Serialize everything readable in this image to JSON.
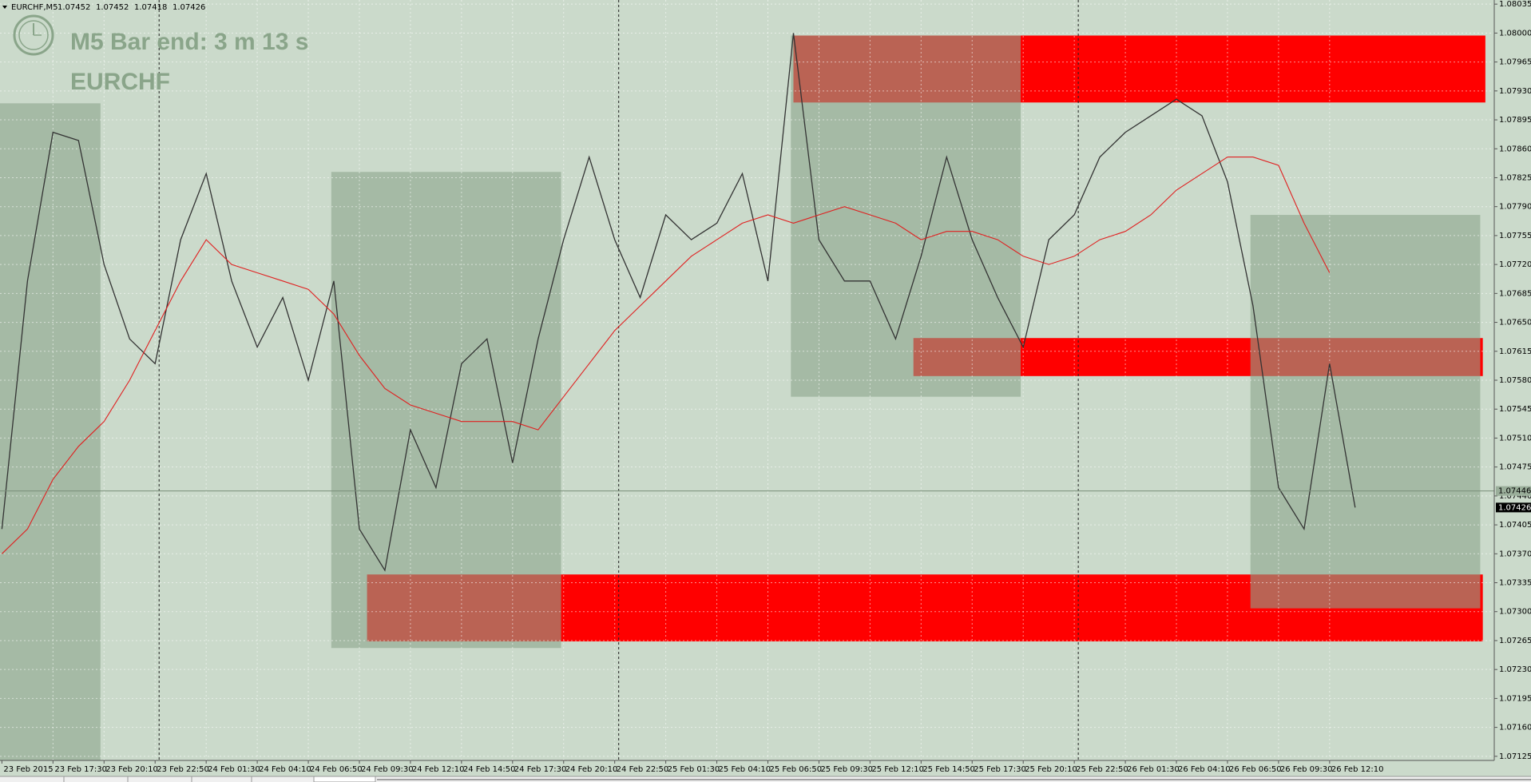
{
  "header": {
    "symbol": "EURCHF,M5",
    "ohlc": [
      1.07452,
      1.07452,
      1.07418,
      1.07426
    ]
  },
  "overlay": {
    "timer": "M5 Bar end: 3 m 13 s"
  },
  "chart_data": {
    "type": "line",
    "categories": [
      "23 Feb 2015",
      null,
      "23 Feb 17:30",
      null,
      "23 Feb 20:10",
      null,
      "23 Feb 22:50",
      null,
      "24 Feb 01:30",
      null,
      "24 Feb 04:10",
      null,
      "24 Feb 06:50",
      null,
      "24 Feb 09:30",
      null,
      "24 Feb 12:10",
      null,
      "24 Feb 14:50",
      null,
      "24 Feb 17:30",
      null,
      "24 Feb 20:10",
      null,
      "24 Feb 22:50",
      null,
      "25 Feb 01:30",
      null,
      "25 Feb 04:10",
      null,
      "25 Feb 06:50",
      null,
      "25 Feb 09:30",
      null,
      "25 Feb 12:10",
      null,
      "25 Feb 14:50",
      null,
      "25 Feb 17:30",
      null,
      "25 Feb 20:10",
      null,
      "25 Feb 22:50",
      null,
      "26 Feb 01:30",
      null,
      "26 Feb 04:10",
      null,
      "26 Feb 06:50",
      null,
      "26 Feb 09:30",
      null,
      "26 Feb 12:10",
      null
    ],
    "series": [
      {
        "name": "EURCHF",
        "color": "#333333",
        "values": [
          1.074,
          1.077,
          1.0788,
          1.0787,
          1.0772,
          1.0763,
          1.076,
          1.0775,
          1.0783,
          1.077,
          1.0762,
          1.0768,
          1.0758,
          1.077,
          1.074,
          1.0735,
          1.0752,
          1.0745,
          1.076,
          1.0763,
          1.0748,
          1.0763,
          1.0775,
          1.0785,
          1.0775,
          1.0768,
          1.0778,
          1.0775,
          1.0777,
          1.0783,
          1.077,
          1.08,
          1.0775,
          1.077,
          1.077,
          1.0763,
          1.0773,
          1.0785,
          1.0775,
          1.0768,
          1.0762,
          1.0775,
          1.0778,
          1.0785,
          1.0788,
          1.079,
          1.0792,
          1.079,
          1.0782,
          1.0767,
          1.0745,
          1.074,
          1.076,
          1.07426
        ]
      },
      {
        "color": "#e02020",
        "values": [
          1.0737,
          1.074,
          1.0746,
          1.075,
          1.0753,
          1.0758,
          1.0764,
          1.077,
          1.0775,
          1.0772,
          1.0771,
          1.077,
          1.0769,
          1.0766,
          1.0761,
          1.0757,
          1.0755,
          1.0754,
          1.0753,
          1.0753,
          1.0753,
          1.0752,
          1.0756,
          1.076,
          1.0764,
          1.0767,
          1.077,
          1.0773,
          1.0775,
          1.0777,
          1.0778,
          1.0777,
          1.0778,
          1.0779,
          1.0778,
          1.0777,
          1.0775,
          1.0776,
          1.0776,
          1.0775,
          1.0773,
          1.0772,
          1.0773,
          1.0775,
          1.0776,
          1.0778,
          1.0781,
          1.0783,
          1.0785,
          1.0785,
          1.0784,
          1.0777,
          1.0771,
          null
        ]
      }
    ],
    "zones": [
      {
        "x0": 31.0,
        "x1": 58.1,
        "y0": 1.07916,
        "y1": 1.07997,
        "color": "#ff0000"
      },
      {
        "x0": 35.7,
        "x1": 58.0,
        "y0": 1.07585,
        "y1": 1.07631,
        "color": "#ff0000"
      },
      {
        "x0": 14.3,
        "x1": 58.0,
        "y0": 1.07264,
        "y1": 1.07345,
        "color": "#ff0000"
      },
      {
        "x0": -0.08,
        "x1": 3.86,
        "y0": 1.0712,
        "y1": 1.07915,
        "color": "#8ca58c"
      },
      {
        "x0": 12.9,
        "x1": 21.9,
        "y0": 1.07256,
        "y1": 1.07832,
        "color": "#8ca58c"
      },
      {
        "x0": 30.9,
        "x1": 39.9,
        "y0": 1.0756,
        "y1": 1.07997,
        "color": "#8ca58c"
      },
      {
        "x0": 48.9,
        "x1": 57.9,
        "y0": 1.07304,
        "y1": 1.0778,
        "color": "#8ca58c"
      }
    ],
    "price_line": 1.07446,
    "ylim": [
      1.0712,
      1.0804
    ],
    "yticks": [
      1.07125,
      {
        "value": 1.0716,
        "label": "1.07160"
      },
      1.07195,
      {
        "value": 1.0723,
        "label": "1.07230"
      },
      1.07265,
      {
        "value": 1.073,
        "label": "1.07300"
      },
      1.07335,
      {
        "value": 1.0737,
        "label": "1.07370"
      },
      1.07405,
      {
        "value": 1.0744,
        "label": "1.07440"
      },
      1.07475,
      {
        "value": 1.0751,
        "label": "1.07510"
      },
      1.07545,
      {
        "value": 1.0758,
        "label": "1.07580"
      },
      1.07615,
      {
        "value": 1.0765,
        "label": "1.07650"
      },
      1.07685,
      {
        "value": 1.0772,
        "label": "1.07720"
      },
      1.07755,
      {
        "value": 1.0779,
        "label": "1.07790"
      },
      1.07825,
      {
        "value": 1.0786,
        "label": "1.07860"
      },
      1.07895,
      {
        "value": 1.0793,
        "label": "1.07930"
      },
      1.07965,
      {
        "value": 1.08,
        "label": "1.08000"
      },
      1.08035
    ],
    "grid": true
  }
}
